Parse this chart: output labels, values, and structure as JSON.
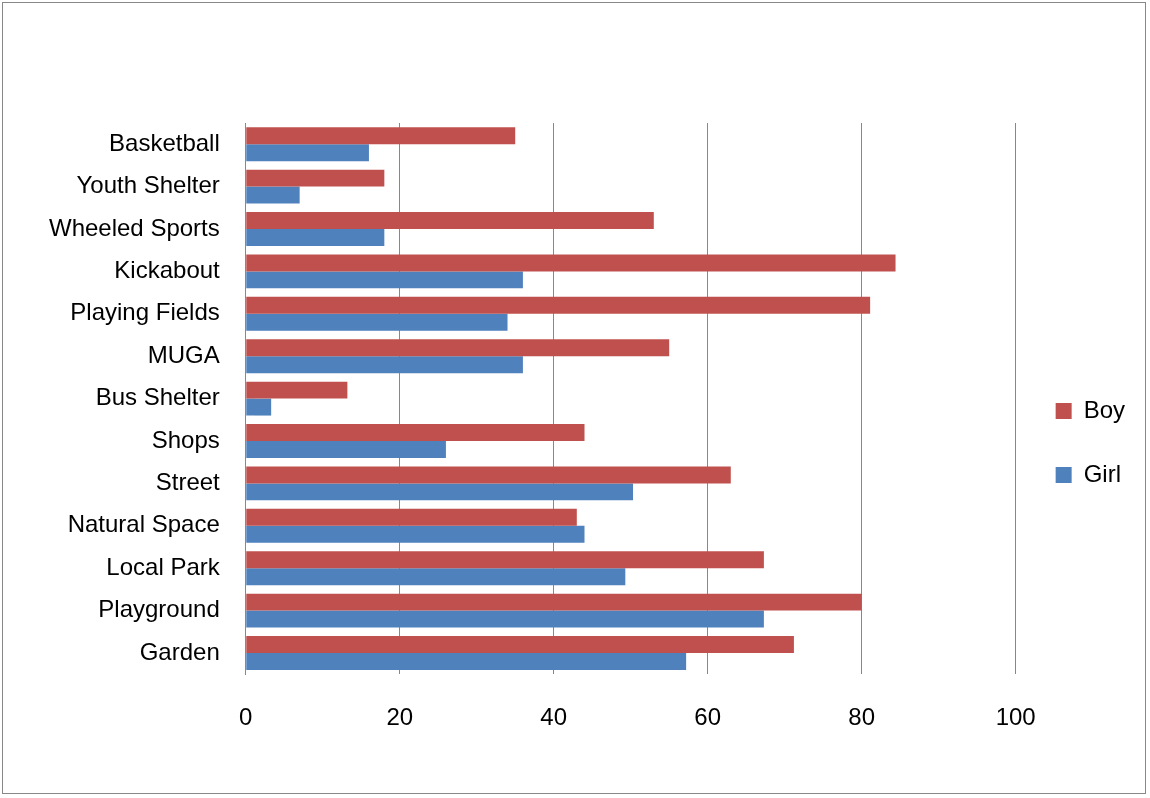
{
  "chart_data": {
    "type": "bar",
    "orientation": "horizontal",
    "categories": [
      "Basketball",
      "Youth Shelter",
      "Wheeled Sports",
      "Kickabout",
      "Playing Fields",
      "MUGA",
      "Bus Shelter",
      "Shops",
      "Street",
      "Natural Space",
      "Local Park",
      "Playground",
      "Garden"
    ],
    "series": [
      {
        "name": "Boy",
        "color": "#c0504d",
        "values": [
          35,
          18,
          53,
          84.4,
          81.1,
          55,
          13.2,
          44,
          63,
          43,
          67.3,
          80,
          71.2
        ]
      },
      {
        "name": "Girl",
        "color": "#4f81bd",
        "values": [
          16,
          7,
          18,
          36,
          34,
          36,
          3.3,
          26,
          50.3,
          44,
          49.3,
          67.3,
          57.2
        ]
      }
    ],
    "xlim": [
      0,
      100
    ],
    "xticks": [
      0,
      20,
      40,
      60,
      80,
      100
    ],
    "grid": "x",
    "legend": "right"
  }
}
